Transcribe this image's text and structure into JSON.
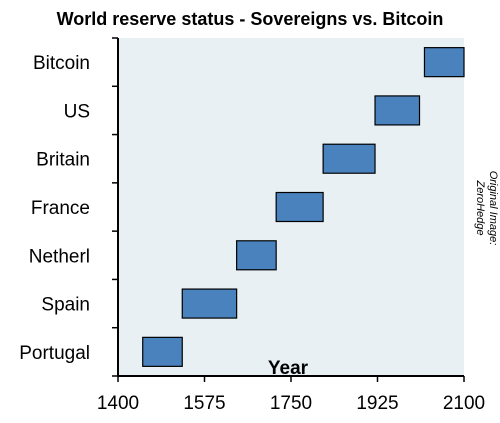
{
  "chart_data": {
    "type": "bar",
    "title": "World reserve status - Sovereigns vs. Bitcoin",
    "xlabel": "Year",
    "ylabel": "",
    "categories": [
      "Bitcoin",
      "US",
      "Britain",
      "France",
      "Netherl",
      "Spain",
      "Portugal"
    ],
    "ranges": [
      {
        "category": "Bitcoin",
        "start": 2020,
        "end": 2100
      },
      {
        "category": "US",
        "start": 1920,
        "end": 2010
      },
      {
        "category": "Britain",
        "start": 1815,
        "end": 1920
      },
      {
        "category": "France",
        "start": 1720,
        "end": 1815
      },
      {
        "category": "Netherl",
        "start": 1640,
        "end": 1720
      },
      {
        "category": "Spain",
        "start": 1530,
        "end": 1640
      },
      {
        "category": "Portugal",
        "start": 1450,
        "end": 1530
      }
    ],
    "xlim": [
      1400,
      2100
    ],
    "xticks": [
      1400,
      1575,
      1750,
      1925,
      2100
    ],
    "annotation": "Original Image:\nZeroHedge",
    "grid": false,
    "colors": {
      "bar": "#4a82bd",
      "bar_stroke": "#000000",
      "plot_bg": "#e8f0f4"
    }
  }
}
